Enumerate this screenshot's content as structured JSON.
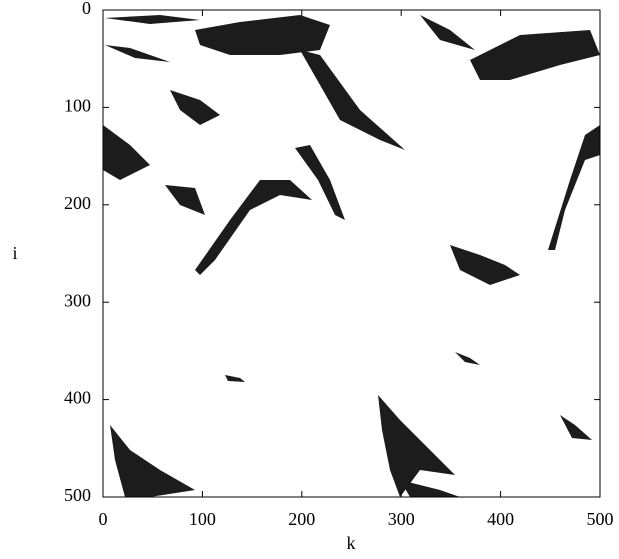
{
  "chart_data": {
    "type": "image",
    "xlabel": "k",
    "ylabel": "i",
    "xlim": [
      0,
      500
    ],
    "ylim": [
      500,
      0
    ],
    "xticks": [
      0,
      100,
      200,
      300,
      400,
      500
    ],
    "yticks": [
      0,
      100,
      200,
      300,
      400,
      500
    ]
  }
}
